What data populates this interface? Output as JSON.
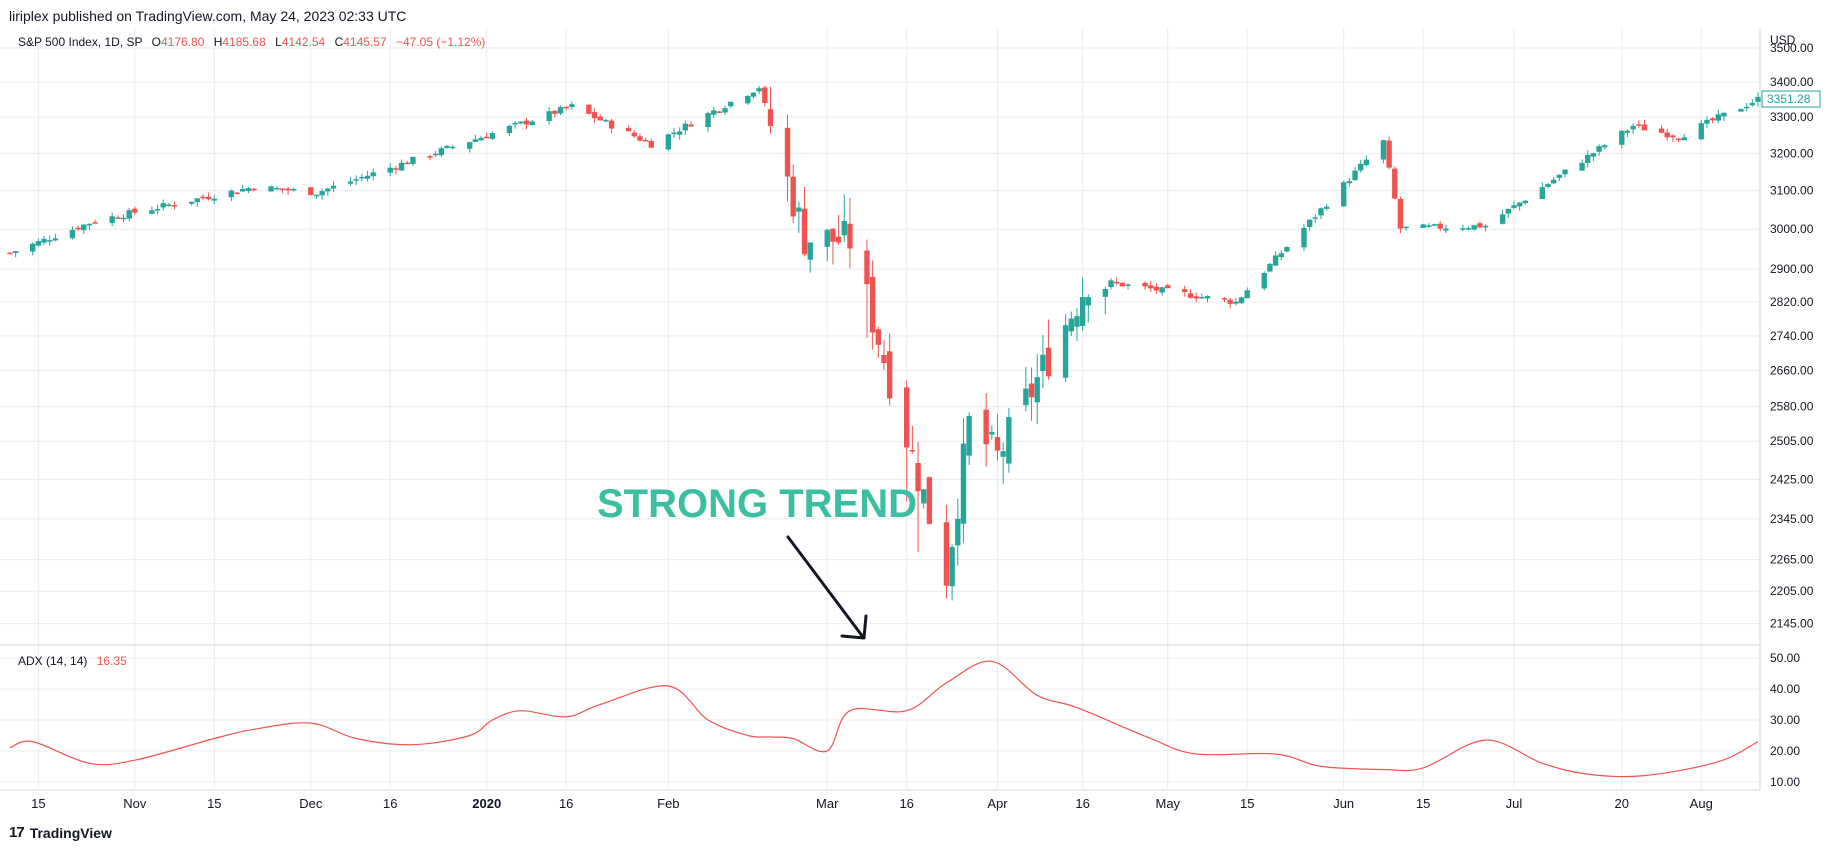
{
  "header": {
    "published": "liriplex published on TradingView.com, May 24, 2023 02:33 UTC"
  },
  "legend": {
    "symbol": "S&P 500 Index, 1D, SP",
    "o_label": "O",
    "o_value": "4176.80",
    "h_label": "H",
    "h_value": "4185.68",
    "l_label": "L",
    "l_value": "4142.54",
    "c_label": "C",
    "c_value": "4145.57",
    "change": "−47.05 (−1.12%)"
  },
  "adx_legend": {
    "label": "ADX (14, 14)",
    "value": "16.35"
  },
  "annotation": {
    "text": "STRONG TREND"
  },
  "footer": {
    "logo_mark": "17",
    "brand": "TradingView"
  },
  "colors": {
    "up": "#26a69a",
    "down": "#ef5350",
    "adx_line": "#f05252",
    "annotation": "#3bbfa0",
    "grid": "#e8edf3",
    "price_tag": "#26a69a"
  },
  "chart_data": [
    {
      "type": "candlestick",
      "title": "S&P 500 Index, 1D, SP",
      "currency": "USD",
      "y_scale": "log",
      "ylim": [
        2110,
        3560
      ],
      "y_ticks": [
        3500,
        3400,
        3300,
        3200,
        3100,
        3000,
        2900,
        2820,
        2740,
        2660,
        2580,
        2505,
        2425,
        2345,
        2265,
        2205,
        2145
      ],
      "last_price": 3351.28,
      "x_tick_labels": [
        "15",
        "Nov",
        "15",
        "Dec",
        "16",
        "2020",
        "16",
        "Feb",
        "Mar",
        "16",
        "Apr",
        "16",
        "May",
        "15",
        "Jun",
        "15",
        "Jul",
        "20",
        "Aug"
      ],
      "x_start_date": "2019-10-10",
      "x_end_date": "2020-08-13",
      "x_tick_dates": [
        "2019-10-15",
        "2019-11-01",
        "2019-11-15",
        "2019-12-02",
        "2019-12-16",
        "2020-01-02",
        "2020-01-16",
        "2020-02-03",
        "2020-03-02",
        "2020-03-16",
        "2020-04-01",
        "2020-04-16",
        "2020-05-01",
        "2020-05-15",
        "2020-06-01",
        "2020-06-15",
        "2020-07-01",
        "2020-07-20",
        "2020-08-03"
      ],
      "segments": [
        {
          "start": "2019-10-10",
          "end": "2019-10-25",
          "open": 2940,
          "close": 3022
        },
        {
          "start": "2019-10-25",
          "end": "2019-11-22",
          "open": 3022,
          "close": 3110
        },
        {
          "start": "2019-11-22",
          "end": "2019-12-03",
          "open": 3110,
          "close": 3095
        },
        {
          "start": "2019-12-03",
          "end": "2020-01-17",
          "open": 3095,
          "close": 3330
        },
        {
          "start": "2020-01-17",
          "end": "2020-01-31",
          "open": 3330,
          "close": 3225
        },
        {
          "start": "2020-01-31",
          "end": "2020-02-19",
          "open": 3225,
          "close": 3386
        },
        {
          "start": "2020-02-19",
          "end": "2020-02-27",
          "open": 3386,
          "close": 2978
        },
        {
          "start": "2020-02-27",
          "end": "2020-03-06",
          "open": 2978,
          "close": 2972
        },
        {
          "start": "2020-03-06",
          "end": "2020-03-23",
          "open": 2972,
          "close": 2237
        },
        {
          "start": "2020-03-23",
          "end": "2020-03-27",
          "open": 2237,
          "close": 2541
        },
        {
          "start": "2020-03-27",
          "end": "2020-04-01",
          "open": 2541,
          "close": 2470
        },
        {
          "start": "2020-04-01",
          "end": "2020-04-17",
          "open": 2470,
          "close": 2875
        },
        {
          "start": "2020-04-17",
          "end": "2020-05-13",
          "open": 2875,
          "close": 2820
        },
        {
          "start": "2020-05-13",
          "end": "2020-06-08",
          "open": 2820,
          "close": 3232
        },
        {
          "start": "2020-06-08",
          "end": "2020-06-11",
          "open": 3232,
          "close": 3002
        },
        {
          "start": "2020-06-11",
          "end": "2020-06-26",
          "open": 3002,
          "close": 3009
        },
        {
          "start": "2020-06-26",
          "end": "2020-07-22",
          "open": 3009,
          "close": 3276
        },
        {
          "start": "2020-07-22",
          "end": "2020-07-30",
          "open": 3276,
          "close": 3246
        },
        {
          "start": "2020-07-30",
          "end": "2020-08-13",
          "open": 3246,
          "close": 3351
        }
      ],
      "wicks": [
        {
          "date": "2020-03-09",
          "high": 2860,
          "low": 2735
        },
        {
          "date": "2020-03-16",
          "high": 2570,
          "low": 2380
        },
        {
          "date": "2020-03-18",
          "high": 2475,
          "low": 2280
        },
        {
          "date": "2020-03-23",
          "high": 2300,
          "low": 2192
        }
      ]
    },
    {
      "type": "line",
      "title": "ADX (14, 14)",
      "ylim": [
        8,
        52
      ],
      "y_ticks": [
        50,
        40,
        30,
        20,
        10
      ],
      "x_start_date": "2019-10-10",
      "x_end_date": "2020-08-13",
      "x": [
        "2019-10-10",
        "2019-10-14",
        "2019-10-24",
        "2019-11-01",
        "2019-11-15",
        "2019-11-22",
        "2019-12-02",
        "2019-12-10",
        "2019-12-20",
        "2019-12-30",
        "2020-01-03",
        "2020-01-08",
        "2020-01-16",
        "2020-01-22",
        "2020-02-03",
        "2020-02-10",
        "2020-02-17",
        "2020-02-21",
        "2020-02-25",
        "2020-03-02",
        "2020-03-06",
        "2020-03-16",
        "2020-03-23",
        "2020-03-31",
        "2020-04-08",
        "2020-04-15",
        "2020-04-28",
        "2020-05-06",
        "2020-05-20",
        "2020-05-28",
        "2020-06-08",
        "2020-06-15",
        "2020-06-26",
        "2020-07-06",
        "2020-07-14",
        "2020-07-24",
        "2020-08-06",
        "2020-08-13"
      ],
      "y": [
        21,
        23,
        16,
        17,
        24,
        27,
        29,
        24,
        22,
        25,
        30,
        33,
        31,
        35,
        41,
        30,
        25,
        24.5,
        24,
        20,
        33,
        33,
        42,
        49,
        38,
        34,
        24,
        19,
        19,
        15,
        14,
        14.5,
        23.5,
        16,
        12.5,
        12,
        16.5,
        23
      ]
    }
  ]
}
